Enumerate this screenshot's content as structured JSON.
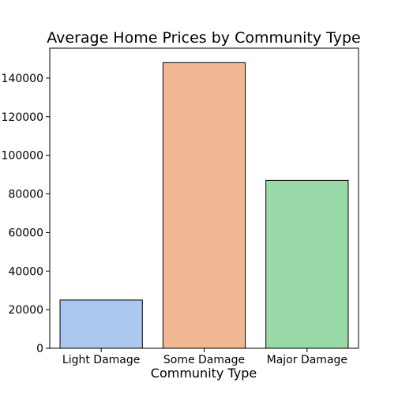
{
  "chart_data": {
    "type": "bar",
    "title": "Average Home Prices by Community Type",
    "xlabel": "Community Type",
    "ylabel": "",
    "categories": [
      "Light Damage",
      "Some Damage",
      "Major Damage"
    ],
    "values": [
      25000,
      148000,
      87000
    ],
    "colors": [
      "#abc9ef",
      "#f1b793",
      "#99d9a7"
    ],
    "ylim": [
      0,
      155500
    ],
    "yticks": [
      0,
      20000,
      40000,
      60000,
      80000,
      100000,
      120000,
      140000
    ],
    "grid": false
  }
}
